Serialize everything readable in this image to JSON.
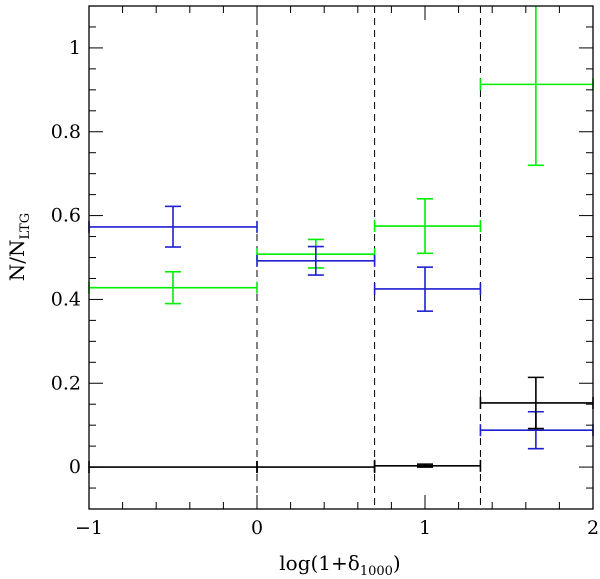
{
  "chart_data": {
    "type": "scatter",
    "title": "",
    "xlabel": "log(1+δ",
    "xlabel_sub": "1000",
    "xlabel_close": ")",
    "ylabel": "N/N",
    "ylabel_sub": "LTG",
    "xlim": [
      -1,
      2
    ],
    "ylim": [
      -0.1,
      1.1
    ],
    "x_ticks": [
      -1,
      0,
      1,
      2
    ],
    "x_tick_labels": [
      "−1",
      "0",
      "1",
      "2"
    ],
    "y_ticks": [
      0,
      0.2,
      0.4,
      0.6,
      0.8,
      1
    ],
    "y_tick_labels": [
      "0",
      "0.2",
      "0.4",
      "0.6",
      "0.8",
      "1"
    ],
    "bin_edges": [
      0,
      0.7,
      1.33
    ],
    "series": [
      {
        "name": "green",
        "color": "#00ee00",
        "points": [
          {
            "x": -0.5,
            "y": 0.428,
            "xlo": -1,
            "xhi": 0,
            "ylo": 0.39,
            "yhi": 0.466
          },
          {
            "x": 0.35,
            "y": 0.508,
            "xlo": 0,
            "xhi": 0.7,
            "ylo": 0.475,
            "yhi": 0.543
          },
          {
            "x": 1.0,
            "y": 0.575,
            "xlo": 0.7,
            "xhi": 1.33,
            "ylo": 0.51,
            "yhi": 0.64
          },
          {
            "x": 1.66,
            "y": 0.913,
            "xlo": 1.33,
            "xhi": 2,
            "ylo": 0.72,
            "yhi": 1.11
          }
        ]
      },
      {
        "name": "blue",
        "color": "#1f1fd0",
        "points": [
          {
            "x": -0.5,
            "y": 0.573,
            "xlo": -1,
            "xhi": 0,
            "ylo": 0.525,
            "yhi": 0.622
          },
          {
            "x": 0.35,
            "y": 0.492,
            "xlo": 0,
            "xhi": 0.7,
            "ylo": 0.458,
            "yhi": 0.526
          },
          {
            "x": 1.0,
            "y": 0.425,
            "xlo": 0.7,
            "xhi": 1.33,
            "ylo": 0.372,
            "yhi": 0.477
          },
          {
            "x": 1.66,
            "y": 0.088,
            "xlo": 1.33,
            "xhi": 2,
            "ylo": 0.044,
            "yhi": 0.132
          }
        ]
      },
      {
        "name": "black",
        "color": "#000000",
        "points": [
          {
            "x": -0.5,
            "y": 0.0,
            "xlo": -1,
            "xhi": 0,
            "ylo": 0.0,
            "yhi": 0.0
          },
          {
            "x": 0.35,
            "y": 0.0,
            "xlo": 0,
            "xhi": 0.7,
            "ylo": 0.0,
            "yhi": 0.0
          },
          {
            "x": 1.0,
            "y": 0.003,
            "xlo": 0.7,
            "xhi": 1.33,
            "ylo": 0.0,
            "yhi": 0.007
          },
          {
            "x": 1.66,
            "y": 0.153,
            "xlo": 1.33,
            "xhi": 2,
            "ylo": 0.092,
            "yhi": 0.214
          }
        ]
      }
    ]
  }
}
